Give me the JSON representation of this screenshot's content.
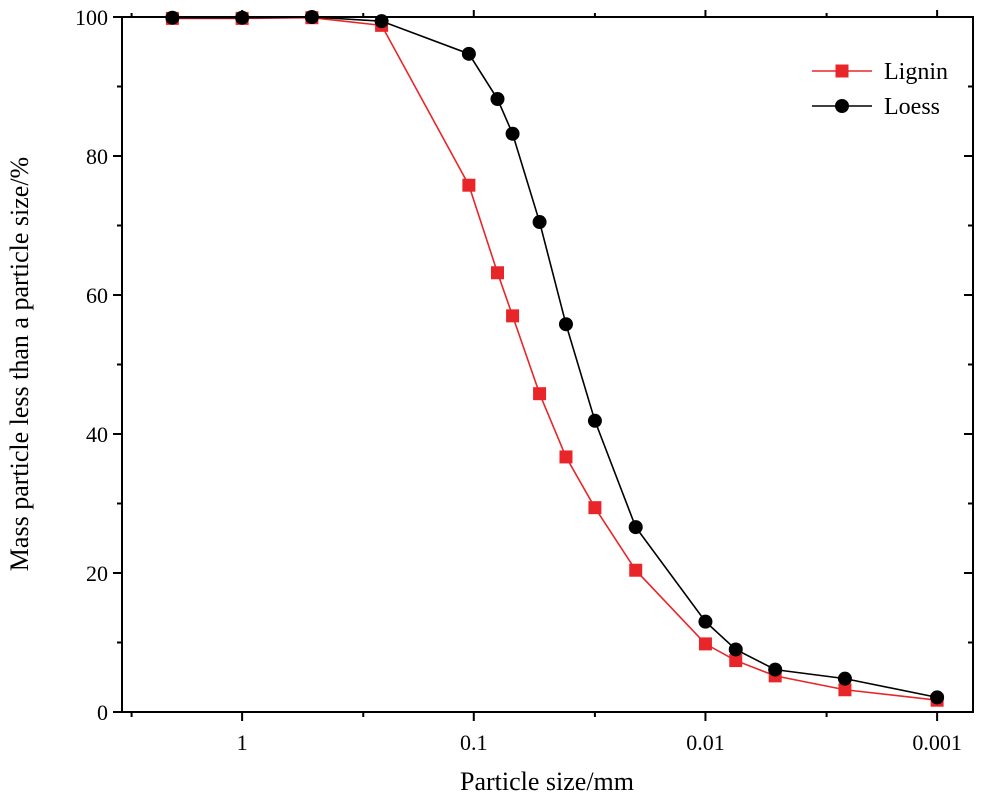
{
  "chart_data": {
    "type": "line",
    "title": "",
    "xlabel": "Particle size/mm",
    "ylabel": "Mass particle less than a particle size/%",
    "x_scale": "log",
    "x_reversed": true,
    "xlim": [
      3.3,
      0.0007
    ],
    "ylim": [
      0,
      100
    ],
    "x_ticks": [
      1,
      0.1,
      0.01,
      0.001
    ],
    "x_tick_labels": [
      "1",
      "0.1",
      "0.01",
      "0.001"
    ],
    "y_ticks": [
      0,
      20,
      40,
      60,
      80,
      100
    ],
    "y_tick_labels": [
      "0",
      "20",
      "40",
      "60",
      "80",
      "100"
    ],
    "grid": false,
    "legend_position": "top-right",
    "series": [
      {
        "name": "Lignin",
        "color": "#e8262a",
        "marker": "square",
        "x": [
          2,
          1,
          0.5,
          0.25,
          0.105,
          0.079,
          0.068,
          0.052,
          0.04,
          0.03,
          0.02,
          0.01,
          0.0074,
          0.005,
          0.0025,
          0.001
        ],
        "y": [
          99.8,
          99.8,
          99.9,
          98.8,
          75.8,
          63.2,
          57.0,
          45.8,
          36.7,
          29.4,
          20.4,
          9.8,
          7.4,
          5.2,
          3.2,
          1.7
        ]
      },
      {
        "name": "Loess",
        "color": "#000000",
        "marker": "circle",
        "x": [
          2,
          1,
          0.5,
          0.25,
          0.105,
          0.079,
          0.068,
          0.052,
          0.04,
          0.03,
          0.02,
          0.01,
          0.0074,
          0.005,
          0.0025,
          0.001
        ],
        "y": [
          99.9,
          99.9,
          100.0,
          99.4,
          94.7,
          88.2,
          83.2,
          70.5,
          55.8,
          41.9,
          26.6,
          13.0,
          9.0,
          6.1,
          4.8,
          2.1
        ]
      }
    ]
  }
}
